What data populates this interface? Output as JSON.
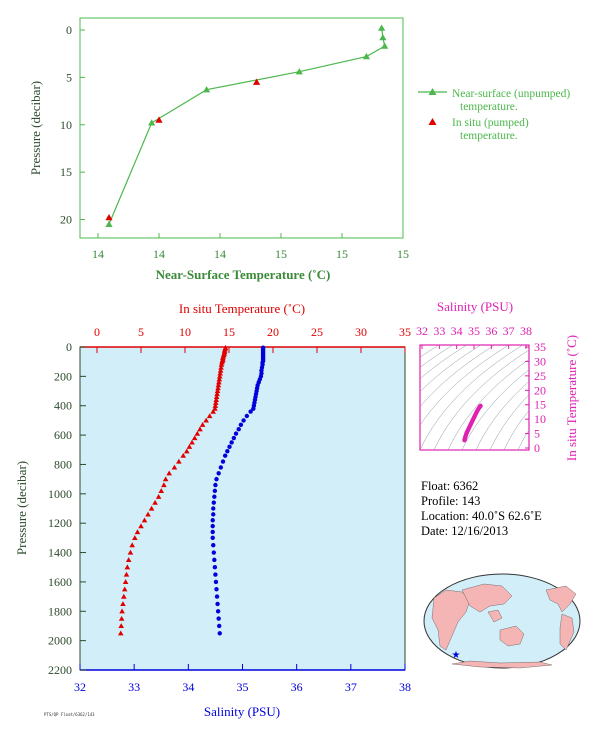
{
  "colors": {
    "green": "#4cb84c",
    "red": "#e00000",
    "blue": "#0000dd",
    "magenta": "#e020b0",
    "axis_text_top": "#3a8a3a",
    "axis_text_dark": "#2d4a2d",
    "panel_fill": "#d2eef8",
    "land": "#f5b5b5",
    "ocean": "#d2eef8"
  },
  "info": {
    "float": "Float:  6362",
    "profile": "Profile:  143",
    "location": "Location:  40.0˚S  62.6˚E",
    "date": "Date:  12/16/2013"
  },
  "footer_small_text": "PTS/QP Float/6362/143",
  "chart_data": [
    {
      "id": "near-surface",
      "type": "line",
      "xlabel": "Near-Surface Temperature (˚C)",
      "ylabel": "Pressure (decibar)",
      "xticks": [
        "14",
        "14",
        "14",
        "15",
        "15",
        "15"
      ],
      "yticks": [
        "0",
        "5",
        "10",
        "15",
        "20"
      ],
      "xlim": [
        0,
        5
      ],
      "ylim": [
        -1,
        22
      ],
      "y_inverted": true,
      "legend_placement": "right",
      "series": [
        {
          "name": "Near-surface (unpumped) temperature.",
          "marker": "triangle",
          "line": true,
          "color": "#4cb84c",
          "x": [
            0.18,
            0.88,
            1.78,
            3.3,
            4.4,
            4.7,
            4.67,
            4.65
          ],
          "y": [
            20.5,
            9.8,
            6.3,
            4.4,
            2.8,
            1.7,
            0.8,
            -0.2
          ]
        },
        {
          "name": "In situ (pumped) temperature.",
          "marker": "triangle",
          "line": false,
          "color": "#e00000",
          "x": [
            0.18,
            1.0,
            2.6
          ],
          "y": [
            19.8,
            9.5,
            5.5
          ]
        }
      ]
    },
    {
      "id": "profile",
      "type": "scatter",
      "xlabel_top": "In situ Temperature (˚C)",
      "xlabel_bottom": "Salinity (PSU)",
      "ylabel": "Pressure (decibar)",
      "top_xticks": [
        "0",
        "5",
        "10",
        "15",
        "20",
        "25",
        "30",
        "35"
      ],
      "bottom_xticks": [
        "32",
        "33",
        "34",
        "35",
        "36",
        "37",
        "38"
      ],
      "yticks": [
        "0",
        "200",
        "400",
        "600",
        "800",
        "1000",
        "1200",
        "1400",
        "1600",
        "1800",
        "2000",
        "2200"
      ],
      "temperature_range": [
        -1,
        35
      ],
      "salinity_range": [
        32,
        38
      ],
      "pressure_range": [
        0,
        2200
      ],
      "y_inverted": true,
      "temperature": {
        "color": "#e00000",
        "marker": "triangle",
        "pressure": [
          5,
          15,
          25,
          35,
          45,
          55,
          65,
          75,
          85,
          95,
          105,
          120,
          140,
          160,
          180,
          200,
          220,
          240,
          260,
          280,
          300,
          320,
          340,
          360,
          380,
          400,
          420,
          440,
          470,
          500,
          530,
          560,
          590,
          620,
          650,
          680,
          710,
          740,
          780,
          820,
          860,
          900,
          940,
          980,
          1020,
          1060,
          1100,
          1140,
          1180,
          1220,
          1260,
          1300,
          1350,
          1400,
          1450,
          1500,
          1550,
          1600,
          1650,
          1700,
          1750,
          1800,
          1850,
          1900,
          1950
        ],
        "value": [
          14.6,
          14.55,
          14.5,
          14.5,
          14.45,
          14.4,
          14.35,
          14.3,
          14.3,
          14.25,
          14.2,
          14.15,
          14.1,
          14.05,
          14.0,
          13.95,
          13.9,
          13.85,
          13.8,
          13.75,
          13.7,
          13.65,
          13.6,
          13.55,
          13.5,
          13.45,
          13.4,
          13.2,
          12.8,
          12.4,
          12.0,
          11.7,
          11.4,
          11.1,
          10.8,
          10.5,
          10.2,
          9.8,
          9.3,
          8.8,
          8.2,
          7.8,
          7.6,
          7.3,
          7.0,
          6.6,
          6.2,
          5.8,
          5.4,
          5.0,
          4.6,
          4.3,
          4.0,
          3.8,
          3.6,
          3.45,
          3.35,
          3.25,
          3.15,
          3.05,
          2.95,
          2.85,
          2.8,
          2.75,
          2.7
        ]
      },
      "salinity": {
        "color": "#0000dd",
        "marker": "dot",
        "pressure": [
          5,
          15,
          25,
          35,
          45,
          55,
          65,
          75,
          85,
          95,
          105,
          120,
          140,
          160,
          180,
          200,
          220,
          240,
          260,
          280,
          300,
          320,
          340,
          360,
          380,
          400,
          420,
          440,
          470,
          500,
          530,
          560,
          590,
          620,
          650,
          680,
          710,
          740,
          780,
          820,
          860,
          900,
          940,
          980,
          1020,
          1060,
          1100,
          1140,
          1180,
          1220,
          1260,
          1300,
          1350,
          1400,
          1450,
          1500,
          1550,
          1600,
          1650,
          1700,
          1750,
          1800,
          1850,
          1900,
          1950
        ],
        "value": [
          35.38,
          35.38,
          35.38,
          35.38,
          35.38,
          35.38,
          35.38,
          35.38,
          35.38,
          35.38,
          35.37,
          35.37,
          35.36,
          35.35,
          35.35,
          35.34,
          35.32,
          35.3,
          35.28,
          35.27,
          35.26,
          35.25,
          35.24,
          35.23,
          35.22,
          35.21,
          35.2,
          35.15,
          35.08,
          35.02,
          34.97,
          34.93,
          34.88,
          34.84,
          34.8,
          34.76,
          34.72,
          34.68,
          34.64,
          34.6,
          34.56,
          34.52,
          34.5,
          34.49,
          34.48,
          34.47,
          34.46,
          34.46,
          34.45,
          34.45,
          34.45,
          34.45,
          34.46,
          34.47,
          34.48,
          34.49,
          34.5,
          34.51,
          34.52,
          34.53,
          34.54,
          34.55,
          34.56,
          34.57,
          34.58
        ]
      }
    },
    {
      "id": "ts-diagram",
      "type": "scatter",
      "title": "Salinity (PSU)",
      "ylabel": "In situ Temperature (˚C)",
      "xticks": [
        "32",
        "33",
        "34",
        "35",
        "36",
        "37",
        "38"
      ],
      "yticks": [
        "0",
        "5",
        "10",
        "15",
        "20",
        "25",
        "30",
        "35"
      ],
      "xlim": [
        32,
        38
      ],
      "ylim": [
        -1,
        35
      ],
      "series": [
        {
          "color": "#e020b0",
          "x": [
            34.45,
            34.46,
            34.48,
            34.5,
            34.52,
            34.55,
            34.58,
            34.62,
            34.66,
            34.7,
            34.74,
            34.78,
            34.82,
            34.86,
            34.9,
            34.94,
            34.98,
            35.02,
            35.06,
            35.1,
            35.14,
            35.18,
            35.22,
            35.26,
            35.3,
            35.34,
            35.36,
            35.38
          ],
          "y": [
            2.7,
            3.0,
            3.4,
            3.8,
            4.3,
            4.8,
            5.3,
            5.8,
            6.3,
            6.8,
            7.3,
            7.8,
            8.3,
            8.8,
            9.3,
            9.8,
            10.3,
            10.8,
            11.3,
            11.8,
            12.3,
            12.8,
            13.2,
            13.6,
            14.0,
            14.3,
            14.45,
            14.6
          ]
        }
      ]
    }
  ]
}
